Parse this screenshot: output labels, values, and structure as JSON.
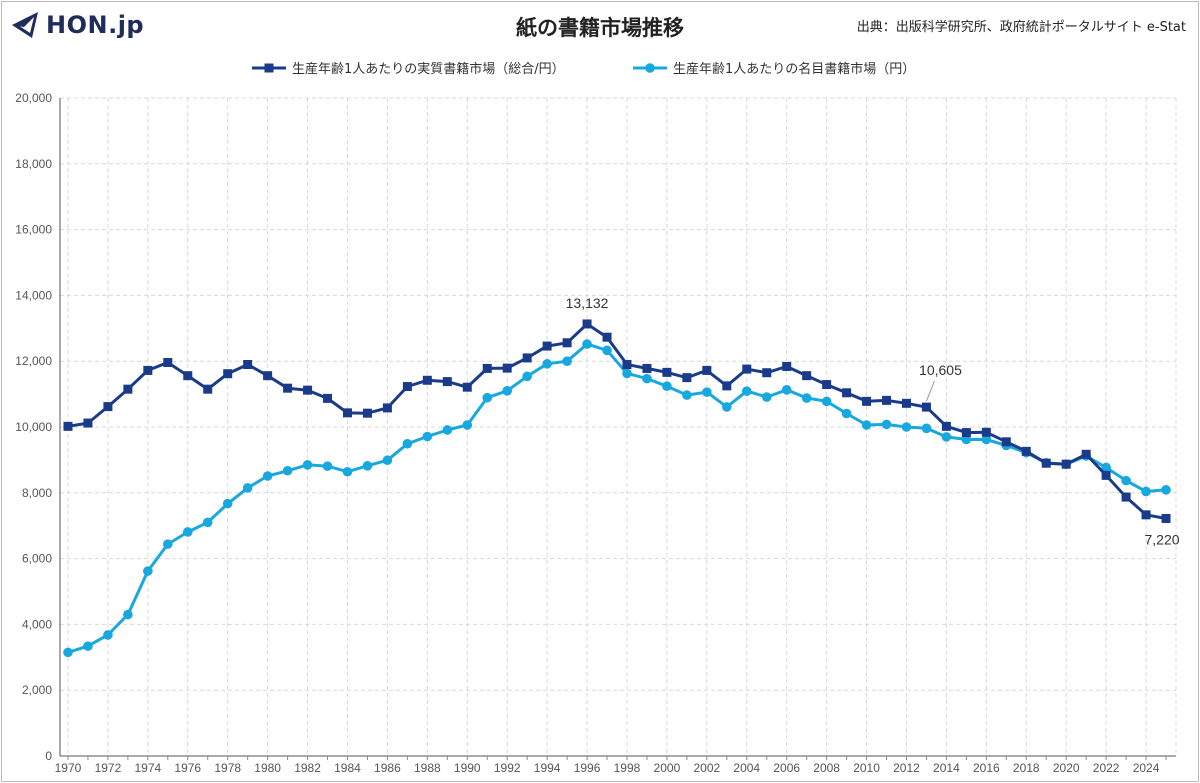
{
  "header": {
    "logo_text": "HON.jp",
    "title": "紙の書籍市場推移",
    "source": "出典：出版科学研究所、政府統計ポータルサイト e-Stat"
  },
  "colors": {
    "real": "#1a3a8a",
    "nominal": "#18a8e0",
    "grid": "#d9d9d9",
    "logo": "#1f2d5a"
  },
  "chart_data": {
    "type": "line",
    "title": "紙の書籍市場推移",
    "x": [
      1970,
      1971,
      1972,
      1973,
      1974,
      1975,
      1976,
      1977,
      1978,
      1979,
      1980,
      1981,
      1982,
      1983,
      1984,
      1985,
      1986,
      1987,
      1988,
      1989,
      1990,
      1991,
      1992,
      1993,
      1994,
      1995,
      1996,
      1997,
      1998,
      1999,
      2000,
      2001,
      2002,
      2003,
      2004,
      2005,
      2006,
      2007,
      2008,
      2009,
      2010,
      2011,
      2012,
      2013,
      2014,
      2015,
      2016,
      2017,
      2018,
      2019,
      2020,
      2021,
      2022,
      2023,
      2024,
      2025
    ],
    "xtick_labels": [
      "1970",
      "1972",
      "1974",
      "1976",
      "1978",
      "1980",
      "1982",
      "1984",
      "1986",
      "1988",
      "1990",
      "1992",
      "1994",
      "1996",
      "1998",
      "2000",
      "2002",
      "2004",
      "2006",
      "2008",
      "2010",
      "2012",
      "2014",
      "2016",
      "2018",
      "2020",
      "2022",
      "2024"
    ],
    "ylim": [
      0,
      20000
    ],
    "yticks": [
      0,
      2000,
      4000,
      6000,
      8000,
      10000,
      12000,
      14000,
      16000,
      18000,
      20000
    ],
    "ytick_labels": [
      "0",
      "2,000",
      "4,000",
      "6,000",
      "8,000",
      "10,000",
      "12,000",
      "14,000",
      "16,000",
      "18,000",
      "20,000"
    ],
    "grid": true,
    "legend_position": "top-center",
    "series": [
      {
        "name": "生産年齢1人あたりの実質書籍市場（総合/円）",
        "marker": "square",
        "values": [
          10020,
          10120,
          10620,
          11150,
          11720,
          11960,
          11560,
          11150,
          11620,
          11900,
          11560,
          11180,
          11120,
          10870,
          10430,
          10420,
          10580,
          11230,
          11420,
          11380,
          11210,
          11780,
          11790,
          12100,
          12460,
          12560,
          13132,
          12730,
          11900,
          11780,
          11660,
          11500,
          11720,
          11250,
          11760,
          11650,
          11840,
          11560,
          11290,
          11040,
          10780,
          10810,
          10720,
          10605,
          10020,
          9830,
          9840,
          9550,
          9260,
          8900,
          8870,
          9170,
          8530,
          7870,
          7330,
          7220
        ]
      },
      {
        "name": "生産年齢1人あたりの名目書籍市場（円）",
        "marker": "circle",
        "values": [
          3150,
          3340,
          3680,
          4300,
          5620,
          6440,
          6810,
          7100,
          7670,
          8150,
          8510,
          8670,
          8850,
          8810,
          8640,
          8820,
          8990,
          9490,
          9710,
          9910,
          10060,
          10890,
          11100,
          11540,
          11920,
          12000,
          12520,
          12330,
          11630,
          11470,
          11240,
          10970,
          11060,
          10610,
          11090,
          10910,
          11130,
          10880,
          10780,
          10410,
          10060,
          10080,
          10000,
          9960,
          9700,
          9620,
          9620,
          9440,
          9220,
          8910,
          8870,
          9120,
          8770,
          8370,
          8040,
          8090
        ]
      }
    ],
    "annotations": [
      {
        "series": 0,
        "x": 1996,
        "text": "13,132"
      },
      {
        "series": 0,
        "x": 2013,
        "text": "10,605"
      },
      {
        "series": 0,
        "x": 2025,
        "text": "7,220"
      }
    ]
  }
}
